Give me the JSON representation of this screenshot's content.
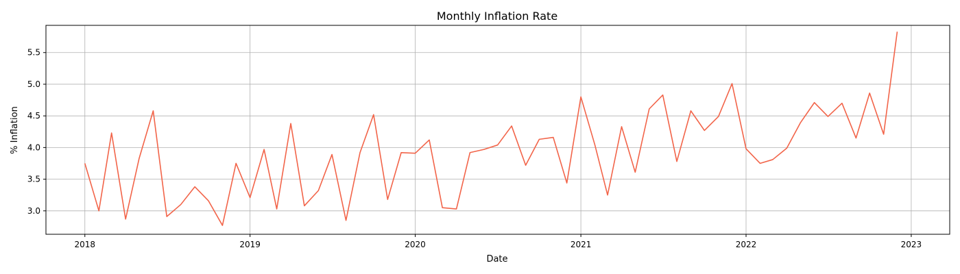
{
  "chart_data": {
    "type": "line",
    "title": "Monthly Inflation Rate",
    "xlabel": "Date",
    "ylabel": "% Inflation",
    "xlim": [
      "2017-10-07",
      "2023-03-27"
    ],
    "ylim": [
      2.63,
      5.93
    ],
    "grid": true,
    "x_ticks": [
      "2018",
      "2019",
      "2020",
      "2021",
      "2022",
      "2023"
    ],
    "y_ticks": [
      "3.0",
      "3.5",
      "4.0",
      "4.5",
      "5.0",
      "5.5"
    ],
    "line_color": "#f26449",
    "series": [
      {
        "x": [
          "2018-01",
          "2018-02",
          "2018-03",
          "2018-04",
          "2018-05",
          "2018-06",
          "2018-07",
          "2018-08",
          "2018-09",
          "2018-10",
          "2018-11",
          "2018-12",
          "2019-01",
          "2019-02",
          "2019-03",
          "2019-04",
          "2019-05",
          "2019-06",
          "2019-07",
          "2019-08",
          "2019-09",
          "2019-10",
          "2019-11",
          "2019-12",
          "2020-01",
          "2020-02",
          "2020-03",
          "2020-04",
          "2020-05",
          "2020-06",
          "2020-07",
          "2020-08",
          "2020-09",
          "2020-10",
          "2020-11",
          "2020-12",
          "2021-01",
          "2021-02",
          "2021-03",
          "2021-04",
          "2021-05",
          "2021-06",
          "2021-07",
          "2021-08",
          "2021-09",
          "2021-10",
          "2021-11",
          "2021-12",
          "2022-01",
          "2022-02",
          "2022-03",
          "2022-04",
          "2022-05",
          "2022-06",
          "2022-07",
          "2022-08",
          "2022-09",
          "2022-10",
          "2022-11",
          "2022-12"
        ],
        "values": [
          3.75,
          3.0,
          4.23,
          2.87,
          3.83,
          4.58,
          2.91,
          3.1,
          3.38,
          3.16,
          2.77,
          3.75,
          3.21,
          3.97,
          3.03,
          4.38,
          3.08,
          3.32,
          3.89,
          2.85,
          3.92,
          4.52,
          3.18,
          3.92,
          3.91,
          4.12,
          3.05,
          3.03,
          3.92,
          3.97,
          4.04,
          4.34,
          3.72,
          4.13,
          4.16,
          3.44,
          4.8,
          4.04,
          3.25,
          4.33,
          3.61,
          4.61,
          4.83,
          3.78,
          4.58,
          4.27,
          4.49,
          5.01,
          3.98,
          3.75,
          3.81,
          3.99,
          4.39,
          4.71,
          4.49,
          4.7,
          4.15,
          4.86,
          4.21,
          5.83
        ]
      }
    ]
  }
}
